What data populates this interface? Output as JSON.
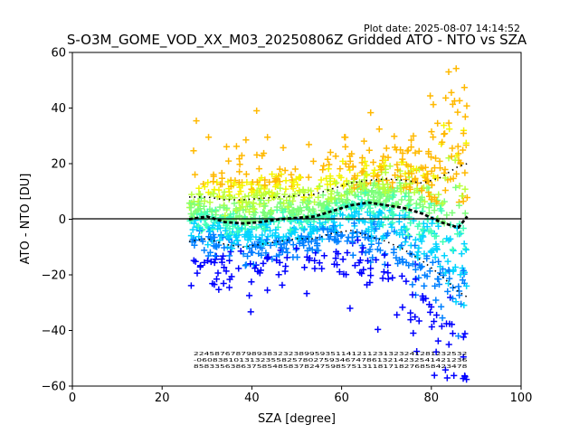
{
  "plot_date": "Plot date: 2025-08-07 14:14:52",
  "chart_data": {
    "type": "scatter",
    "title": "S-O3M_GOME_VOD_XX_M03_20250806Z Gridded ATO - NTO vs SZA",
    "xlabel": "SZA [degree]",
    "ylabel": "ATO - NTO [DU]",
    "xlim": [
      0,
      100
    ],
    "ylim": [
      -60,
      60
    ],
    "xticks": [
      0,
      20,
      40,
      60,
      80,
      100
    ],
    "yticks": [
      -60,
      -40,
      -20,
      0,
      20,
      40,
      60
    ],
    "grid": false,
    "zero_line": 0,
    "point_cloud": {
      "marker": "plus",
      "x_range": [
        26,
        88
      ],
      "colors": [
        "#0000ff",
        "#0080ff",
        "#00d4ff",
        "#40ffb8",
        "#7cff79",
        "#b9ff3c",
        "#f6f500",
        "#ffb900"
      ]
    },
    "mean_line": {
      "style": "thick dotted black",
      "x": [
        26,
        30,
        34,
        38,
        42,
        46,
        50,
        54,
        58,
        62,
        66,
        70,
        74,
        78,
        82,
        86,
        88
      ],
      "y": [
        0,
        1,
        -1,
        -1.5,
        -1,
        0,
        0.5,
        1,
        3,
        5,
        6,
        5,
        4,
        2,
        -1,
        -3,
        1
      ]
    },
    "upper_line": {
      "style": "thin dotted black",
      "x": [
        26,
        30,
        34,
        38,
        42,
        46,
        50,
        54,
        58,
        62,
        66,
        70,
        74,
        78,
        82,
        86,
        88
      ],
      "y": [
        8,
        8,
        7,
        7,
        7.5,
        8,
        8.5,
        9,
        11,
        13,
        14,
        14.5,
        14,
        13,
        15,
        19,
        20
      ]
    },
    "lower_line": {
      "style": "thin dotted black",
      "x": [
        26,
        30,
        34,
        38,
        42,
        46,
        50,
        54,
        58,
        62,
        66,
        70,
        74,
        78,
        82,
        86,
        88
      ],
      "y": [
        -8,
        -7,
        -9,
        -10,
        -9,
        -8,
        -7,
        -7,
        -5,
        -4,
        -6,
        -8,
        -11,
        -15,
        -20,
        -26,
        -28
      ]
    },
    "bin_annotations": {
      "count_row": "2245876787989383232389959351141211231323241281232532",
      "mean_row": "-060838101313235582578027593467478613214232541421236",
      "std_row": "8583356386375854858378247598575131181718276858423478",
      "x_start": 27,
      "x_end": 88
    }
  }
}
